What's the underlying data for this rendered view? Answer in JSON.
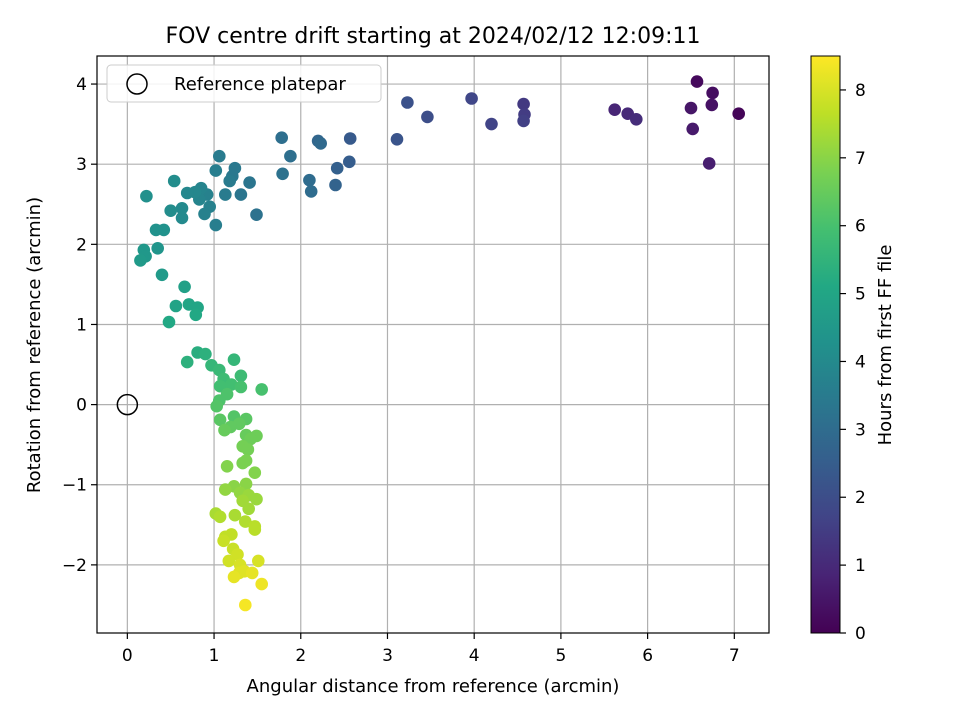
{
  "chart_data": {
    "type": "scatter",
    "title": "FOV centre drift starting at 2024/02/12 12:09:11",
    "xlabel": "Angular distance from reference (arcmin)",
    "ylabel": "Rotation from reference (arcmin)",
    "xlim": [
      -0.35,
      7.4
    ],
    "ylim": [
      -2.85,
      4.35
    ],
    "xticks": [
      0,
      1,
      2,
      3,
      4,
      5,
      6,
      7
    ],
    "yticks": [
      -2,
      -1,
      0,
      1,
      2,
      3,
      4
    ],
    "xtick_labels": [
      "0",
      "1",
      "2",
      "3",
      "4",
      "5",
      "6",
      "7"
    ],
    "ytick_labels": [
      "−2",
      "−1",
      "0",
      "1",
      "2",
      "3",
      "4"
    ],
    "grid": true,
    "legend": {
      "placement": "top-left",
      "entries": [
        "Reference platepar"
      ]
    },
    "reference_point": {
      "x": 0,
      "y": 0,
      "label": "Reference platepar"
    },
    "colorbar": {
      "label": "Hours from first FF file",
      "range": [
        0,
        8.5
      ],
      "ticks": [
        0,
        1,
        2,
        3,
        4,
        5,
        6,
        7,
        8
      ],
      "tick_labels": [
        "0",
        "1",
        "2",
        "3",
        "4",
        "5",
        "6",
        "7",
        "8"
      ],
      "colormap": "viridis"
    },
    "points": [
      {
        "x": 6.57,
        "y": 4.03,
        "c": 0.2
      },
      {
        "x": 6.75,
        "y": 3.89,
        "c": 0.3
      },
      {
        "x": 6.74,
        "y": 3.74,
        "c": 0.4
      },
      {
        "x": 6.5,
        "y": 3.7,
        "c": 0.5
      },
      {
        "x": 7.05,
        "y": 3.63,
        "c": 0.1
      },
      {
        "x": 6.52,
        "y": 3.44,
        "c": 0.6
      },
      {
        "x": 6.71,
        "y": 3.01,
        "c": 0.7
      },
      {
        "x": 5.62,
        "y": 3.68,
        "c": 0.9
      },
      {
        "x": 5.77,
        "y": 3.63,
        "c": 1.0
      },
      {
        "x": 5.87,
        "y": 3.56,
        "c": 1.1
      },
      {
        "x": 4.57,
        "y": 3.75,
        "c": 1.4
      },
      {
        "x": 4.58,
        "y": 3.62,
        "c": 1.5
      },
      {
        "x": 4.57,
        "y": 3.54,
        "c": 1.6
      },
      {
        "x": 4.2,
        "y": 3.5,
        "c": 1.7
      },
      {
        "x": 3.97,
        "y": 3.82,
        "c": 1.8
      },
      {
        "x": 3.46,
        "y": 3.59,
        "c": 2.0
      },
      {
        "x": 3.23,
        "y": 3.77,
        "c": 2.1
      },
      {
        "x": 3.11,
        "y": 3.31,
        "c": 2.2
      },
      {
        "x": 2.57,
        "y": 3.32,
        "c": 2.4
      },
      {
        "x": 2.56,
        "y": 3.03,
        "c": 2.5
      },
      {
        "x": 2.42,
        "y": 2.95,
        "c": 2.6
      },
      {
        "x": 2.4,
        "y": 2.74,
        "c": 2.7
      },
      {
        "x": 2.2,
        "y": 3.29,
        "c": 2.8
      },
      {
        "x": 2.23,
        "y": 3.26,
        "c": 2.9
      },
      {
        "x": 2.1,
        "y": 2.8,
        "c": 3.0
      },
      {
        "x": 2.12,
        "y": 2.66,
        "c": 3.0
      },
      {
        "x": 1.88,
        "y": 3.1,
        "c": 3.1
      },
      {
        "x": 1.78,
        "y": 3.33,
        "c": 3.1
      },
      {
        "x": 1.79,
        "y": 2.88,
        "c": 3.2
      },
      {
        "x": 1.49,
        "y": 2.37,
        "c": 3.2
      },
      {
        "x": 1.41,
        "y": 2.77,
        "c": 3.3
      },
      {
        "x": 1.31,
        "y": 2.62,
        "c": 3.3
      },
      {
        "x": 1.24,
        "y": 2.95,
        "c": 3.4
      },
      {
        "x": 1.21,
        "y": 2.85,
        "c": 3.4
      },
      {
        "x": 1.18,
        "y": 2.79,
        "c": 3.5
      },
      {
        "x": 1.13,
        "y": 2.62,
        "c": 3.5
      },
      {
        "x": 1.06,
        "y": 3.1,
        "c": 3.5
      },
      {
        "x": 1.02,
        "y": 2.92,
        "c": 3.6
      },
      {
        "x": 1.02,
        "y": 2.24,
        "c": 3.6
      },
      {
        "x": 0.95,
        "y": 2.47,
        "c": 3.7
      },
      {
        "x": 0.92,
        "y": 2.62,
        "c": 3.7
      },
      {
        "x": 0.89,
        "y": 2.38,
        "c": 3.7
      },
      {
        "x": 0.85,
        "y": 2.7,
        "c": 3.8
      },
      {
        "x": 0.83,
        "y": 2.56,
        "c": 3.8
      },
      {
        "x": 0.78,
        "y": 2.65,
        "c": 3.9
      },
      {
        "x": 0.69,
        "y": 2.64,
        "c": 3.9
      },
      {
        "x": 0.63,
        "y": 2.45,
        "c": 4.0
      },
      {
        "x": 0.63,
        "y": 2.33,
        "c": 4.0
      },
      {
        "x": 0.54,
        "y": 2.79,
        "c": 4.1
      },
      {
        "x": 0.5,
        "y": 2.42,
        "c": 4.1
      },
      {
        "x": 0.22,
        "y": 2.6,
        "c": 4.2
      },
      {
        "x": 0.42,
        "y": 2.18,
        "c": 4.3
      },
      {
        "x": 0.33,
        "y": 2.18,
        "c": 4.3
      },
      {
        "x": 0.35,
        "y": 1.95,
        "c": 4.4
      },
      {
        "x": 0.19,
        "y": 1.93,
        "c": 4.5
      },
      {
        "x": 0.21,
        "y": 1.85,
        "c": 4.5
      },
      {
        "x": 0.15,
        "y": 1.8,
        "c": 4.6
      },
      {
        "x": 0.4,
        "y": 1.62,
        "c": 4.6
      },
      {
        "x": 0.66,
        "y": 1.47,
        "c": 4.8
      },
      {
        "x": 0.56,
        "y": 1.23,
        "c": 4.9
      },
      {
        "x": 0.71,
        "y": 1.25,
        "c": 5.0
      },
      {
        "x": 0.81,
        "y": 1.21,
        "c": 5.0
      },
      {
        "x": 0.79,
        "y": 1.12,
        "c": 5.1
      },
      {
        "x": 0.48,
        "y": 1.03,
        "c": 5.1
      },
      {
        "x": 0.81,
        "y": 0.65,
        "c": 5.3
      },
      {
        "x": 0.9,
        "y": 0.63,
        "c": 5.4
      },
      {
        "x": 0.69,
        "y": 0.53,
        "c": 5.4
      },
      {
        "x": 1.23,
        "y": 0.56,
        "c": 5.6
      },
      {
        "x": 0.97,
        "y": 0.49,
        "c": 5.6
      },
      {
        "x": 1.06,
        "y": 0.43,
        "c": 5.7
      },
      {
        "x": 1.31,
        "y": 0.36,
        "c": 5.8
      },
      {
        "x": 1.11,
        "y": 0.32,
        "c": 5.8
      },
      {
        "x": 1.07,
        "y": 0.23,
        "c": 5.9
      },
      {
        "x": 1.2,
        "y": 0.25,
        "c": 5.9
      },
      {
        "x": 1.31,
        "y": 0.22,
        "c": 6.0
      },
      {
        "x": 1.55,
        "y": 0.19,
        "c": 6.0
      },
      {
        "x": 1.15,
        "y": 0.13,
        "c": 6.1
      },
      {
        "x": 1.06,
        "y": 0.05,
        "c": 6.1
      },
      {
        "x": 1.03,
        "y": -0.02,
        "c": 6.2
      },
      {
        "x": 1.23,
        "y": -0.15,
        "c": 6.2
      },
      {
        "x": 1.37,
        "y": -0.18,
        "c": 6.3
      },
      {
        "x": 1.07,
        "y": -0.19,
        "c": 6.3
      },
      {
        "x": 1.29,
        "y": -0.24,
        "c": 6.4
      },
      {
        "x": 1.19,
        "y": -0.28,
        "c": 6.4
      },
      {
        "x": 1.12,
        "y": -0.32,
        "c": 6.5
      },
      {
        "x": 1.37,
        "y": -0.38,
        "c": 6.5
      },
      {
        "x": 1.49,
        "y": -0.39,
        "c": 6.6
      },
      {
        "x": 1.42,
        "y": -0.43,
        "c": 6.6
      },
      {
        "x": 1.33,
        "y": -0.52,
        "c": 6.7
      },
      {
        "x": 1.39,
        "y": -0.56,
        "c": 6.7
      },
      {
        "x": 1.37,
        "y": -0.7,
        "c": 6.8
      },
      {
        "x": 1.33,
        "y": -0.73,
        "c": 6.8
      },
      {
        "x": 1.15,
        "y": -0.77,
        "c": 6.9
      },
      {
        "x": 1.47,
        "y": -0.85,
        "c": 6.9
      },
      {
        "x": 1.37,
        "y": -0.99,
        "c": 7.0
      },
      {
        "x": 1.23,
        "y": -1.02,
        "c": 7.0
      },
      {
        "x": 1.13,
        "y": -1.06,
        "c": 7.1
      },
      {
        "x": 1.3,
        "y": -1.1,
        "c": 7.1
      },
      {
        "x": 1.4,
        "y": -1.13,
        "c": 7.2
      },
      {
        "x": 1.49,
        "y": -1.18,
        "c": 7.2
      },
      {
        "x": 1.33,
        "y": -1.2,
        "c": 7.3
      },
      {
        "x": 1.4,
        "y": -1.3,
        "c": 7.3
      },
      {
        "x": 1.02,
        "y": -1.36,
        "c": 7.4
      },
      {
        "x": 1.24,
        "y": -1.38,
        "c": 7.4
      },
      {
        "x": 1.07,
        "y": -1.4,
        "c": 7.5
      },
      {
        "x": 1.36,
        "y": -1.46,
        "c": 7.5
      },
      {
        "x": 1.47,
        "y": -1.52,
        "c": 7.6
      },
      {
        "x": 1.47,
        "y": -1.56,
        "c": 7.6
      },
      {
        "x": 1.2,
        "y": -1.62,
        "c": 7.7
      },
      {
        "x": 1.13,
        "y": -1.65,
        "c": 7.7
      },
      {
        "x": 1.11,
        "y": -1.7,
        "c": 7.8
      },
      {
        "x": 1.22,
        "y": -1.8,
        "c": 7.8
      },
      {
        "x": 1.27,
        "y": -1.87,
        "c": 7.9
      },
      {
        "x": 1.17,
        "y": -1.95,
        "c": 7.9
      },
      {
        "x": 1.51,
        "y": -1.95,
        "c": 8.0
      },
      {
        "x": 1.3,
        "y": -2.0,
        "c": 8.0
      },
      {
        "x": 1.35,
        "y": -2.08,
        "c": 8.1
      },
      {
        "x": 1.29,
        "y": -2.1,
        "c": 8.1
      },
      {
        "x": 1.44,
        "y": -2.1,
        "c": 8.2
      },
      {
        "x": 1.23,
        "y": -2.15,
        "c": 8.2
      },
      {
        "x": 1.55,
        "y": -2.24,
        "c": 8.3
      },
      {
        "x": 1.36,
        "y": -2.5,
        "c": 8.4
      }
    ]
  }
}
